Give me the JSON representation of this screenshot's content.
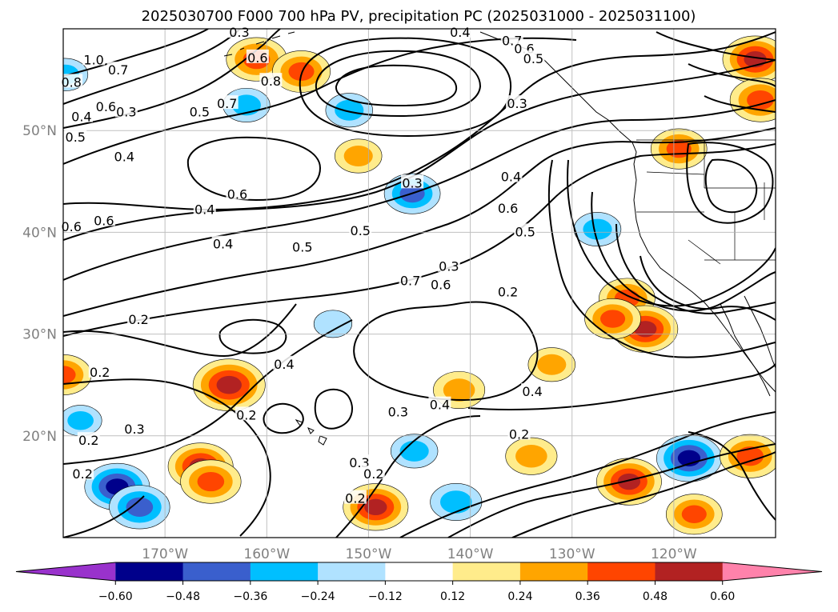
{
  "chart_data": {
    "type": "heatmap",
    "title": "2025030700 F000 700 hPa PV, precipitation PC (2025031000 - 2025031100)",
    "projection": "map",
    "lon_range": [
      -180,
      -110
    ],
    "lat_range": [
      10,
      60
    ],
    "xticks": [
      {
        "lon": -170,
        "label": "170°W"
      },
      {
        "lon": -160,
        "label": "160°W"
      },
      {
        "lon": -150,
        "label": "150°W"
      },
      {
        "lon": -140,
        "label": "140°W"
      },
      {
        "lon": -130,
        "label": "130°W"
      },
      {
        "lon": -120,
        "label": "120°W"
      }
    ],
    "yticks": [
      {
        "lat": 20,
        "label": "20°N"
      },
      {
        "lat": 30,
        "label": "30°N"
      },
      {
        "lat": 40,
        "label": "40°N"
      },
      {
        "lat": 50,
        "label": "50°N"
      }
    ],
    "grid": true,
    "colorbar": {
      "orientation": "horizontal",
      "extend": "both",
      "bounds": [
        "-0.60",
        "-0.48",
        "-0.36",
        "-0.24",
        "-0.12",
        "0.12",
        "0.24",
        "0.36",
        "0.48",
        "0.60"
      ],
      "colors": [
        "#9932cc",
        "#00008b",
        "#3a5fcd",
        "#00bfff",
        "#b0e2ff",
        "#ffffff",
        "#ffec8b",
        "#ffa500",
        "#ff4500",
        "#b22222",
        "#ff82ab"
      ]
    },
    "contour_labels": [
      {
        "text": "1.0",
        "lon": -177.0,
        "lat": 56.9
      },
      {
        "text": "0.7",
        "lon": -174.6,
        "lat": 55.9
      },
      {
        "text": "0.8",
        "lon": -179.2,
        "lat": 54.7
      },
      {
        "text": "0.6",
        "lon": -175.8,
        "lat": 52.3
      },
      {
        "text": "0.4",
        "lon": -178.2,
        "lat": 51.3
      },
      {
        "text": "0.5",
        "lon": -178.8,
        "lat": 49.3
      },
      {
        "text": "0.3",
        "lon": -173.8,
        "lat": 51.8
      },
      {
        "text": "0.4",
        "lon": -174.0,
        "lat": 47.4
      },
      {
        "text": "0.5",
        "lon": -166.6,
        "lat": 51.8
      },
      {
        "text": "0.7",
        "lon": -163.9,
        "lat": 52.6
      },
      {
        "text": "0.3",
        "lon": -162.7,
        "lat": 59.6
      },
      {
        "text": "0.6",
        "lon": -160.9,
        "lat": 57.1
      },
      {
        "text": "0.8",
        "lon": -159.6,
        "lat": 54.8
      },
      {
        "text": "0.6",
        "lon": -162.9,
        "lat": 43.7
      },
      {
        "text": "0.4",
        "lon": -166.1,
        "lat": 42.2
      },
      {
        "text": "0.6",
        "lon": -179.2,
        "lat": 40.5
      },
      {
        "text": "0.6",
        "lon": -176.0,
        "lat": 41.1
      },
      {
        "text": "0.4",
        "lon": -164.3,
        "lat": 38.8
      },
      {
        "text": "0.5",
        "lon": -156.5,
        "lat": 38.5
      },
      {
        "text": "0.2",
        "lon": -172.6,
        "lat": 31.4
      },
      {
        "text": "0.2",
        "lon": -176.4,
        "lat": 26.2
      },
      {
        "text": "0.4",
        "lon": -158.3,
        "lat": 27.0
      },
      {
        "text": "0.2",
        "lon": -162.0,
        "lat": 22.0
      },
      {
        "text": "0.3",
        "lon": -173.0,
        "lat": 20.6
      },
      {
        "text": "0.2",
        "lon": -177.5,
        "lat": 19.5
      },
      {
        "text": "0.2",
        "lon": -178.1,
        "lat": 16.2
      },
      {
        "text": "0.3",
        "lon": -150.9,
        "lat": 17.3
      },
      {
        "text": "0.2",
        "lon": -149.5,
        "lat": 16.2
      },
      {
        "text": "0.2",
        "lon": -151.3,
        "lat": 13.8
      },
      {
        "text": "0.5",
        "lon": -150.8,
        "lat": 40.1
      },
      {
        "text": "0.3",
        "lon": -145.7,
        "lat": 44.8
      },
      {
        "text": "0.7",
        "lon": -145.9,
        "lat": 35.2
      },
      {
        "text": "0.6",
        "lon": -142.9,
        "lat": 34.8
      },
      {
        "text": "0.3",
        "lon": -142.1,
        "lat": 36.6
      },
      {
        "text": "0.4",
        "lon": -141.0,
        "lat": 59.6
      },
      {
        "text": "0.7",
        "lon": -135.9,
        "lat": 58.8
      },
      {
        "text": "0.6",
        "lon": -134.7,
        "lat": 58.0
      },
      {
        "text": "0.5",
        "lon": -133.8,
        "lat": 57.0
      },
      {
        "text": "0.3",
        "lon": -135.4,
        "lat": 52.6
      },
      {
        "text": "0.4",
        "lon": -136.0,
        "lat": 45.4
      },
      {
        "text": "0.6",
        "lon": -136.3,
        "lat": 42.3
      },
      {
        "text": "0.5",
        "lon": -134.6,
        "lat": 40.0
      },
      {
        "text": "0.2",
        "lon": -136.3,
        "lat": 34.1
      },
      {
        "text": "0.4",
        "lon": -133.9,
        "lat": 24.3
      },
      {
        "text": "0.2",
        "lon": -135.2,
        "lat": 20.1
      },
      {
        "text": "0.3",
        "lon": -147.1,
        "lat": 22.3
      },
      {
        "text": "0.4",
        "lon": -143.0,
        "lat": 23.0
      }
    ],
    "precip_blobs": [
      {
        "lon": -161.0,
        "lat": 57.0,
        "value": 0.45
      },
      {
        "lon": -156.6,
        "lat": 55.8,
        "value": 0.42
      },
      {
        "lon": -162.0,
        "lat": 52.5,
        "value": -0.3
      },
      {
        "lon": -151.9,
        "lat": 52.0,
        "value": -0.3
      },
      {
        "lon": -151.0,
        "lat": 47.5,
        "value": 0.3
      },
      {
        "lon": -145.7,
        "lat": 43.8,
        "value": -0.4
      },
      {
        "lon": -179.8,
        "lat": 55.5,
        "value": -0.28
      },
      {
        "lon": -124.6,
        "lat": 33.5,
        "value": 0.4
      },
      {
        "lon": -122.8,
        "lat": 30.5,
        "value": 0.5
      },
      {
        "lon": -126.0,
        "lat": 31.5,
        "value": 0.4
      },
      {
        "lon": -132.0,
        "lat": 27.0,
        "value": 0.3
      },
      {
        "lon": -119.5,
        "lat": 48.2,
        "value": 0.4
      },
      {
        "lon": -163.7,
        "lat": 25.0,
        "value": 0.58
      },
      {
        "lon": -141.1,
        "lat": 24.5,
        "value": 0.35
      },
      {
        "lon": -166.5,
        "lat": 17.0,
        "value": 0.5
      },
      {
        "lon": -165.5,
        "lat": 15.5,
        "value": 0.45
      },
      {
        "lon": -174.7,
        "lat": 15.0,
        "value": -0.5
      },
      {
        "lon": -172.5,
        "lat": 13.0,
        "value": -0.45
      },
      {
        "lon": -178.3,
        "lat": 21.5,
        "value": -0.25
      },
      {
        "lon": -149.3,
        "lat": 13.0,
        "value": 0.5
      },
      {
        "lon": -141.4,
        "lat": 13.5,
        "value": -0.35
      },
      {
        "lon": -145.5,
        "lat": 18.5,
        "value": -0.3
      },
      {
        "lon": -124.4,
        "lat": 15.5,
        "value": 0.5
      },
      {
        "lon": -118.5,
        "lat": 17.8,
        "value": -0.5
      },
      {
        "lon": -112.5,
        "lat": 18.0,
        "value": 0.45
      },
      {
        "lon": -134.0,
        "lat": 18.0,
        "value": 0.35
      },
      {
        "lon": -118.0,
        "lat": 12.3,
        "value": 0.4
      },
      {
        "lon": -153.5,
        "lat": 31.0,
        "value": -0.2
      },
      {
        "lon": -127.5,
        "lat": 40.3,
        "value": -0.3
      },
      {
        "lon": -112.0,
        "lat": 57.0,
        "value": 0.5
      },
      {
        "lon": -111.5,
        "lat": 53.0,
        "value": 0.45
      },
      {
        "lon": -180.0,
        "lat": 26.0,
        "value": 0.4
      }
    ]
  }
}
